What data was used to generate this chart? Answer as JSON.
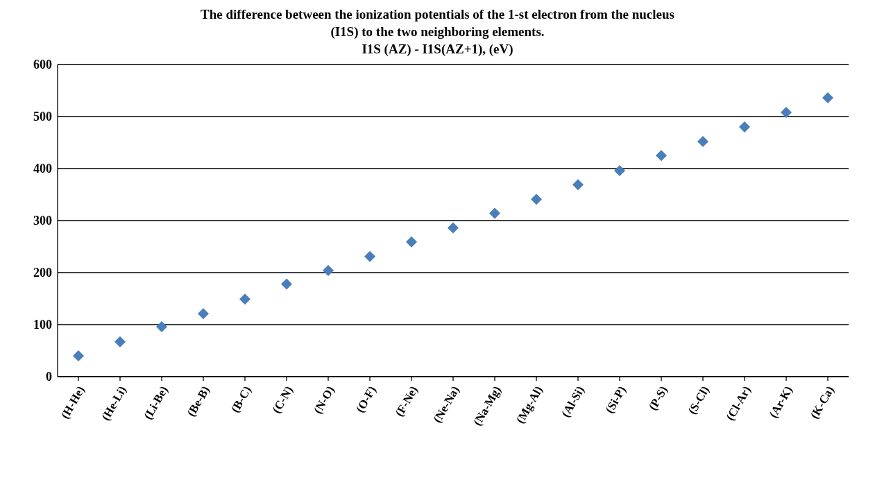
{
  "chart_data": {
    "type": "scatter",
    "title": "The difference between the ionization potentials of the 1-st electron from the nucleus\n(I1S) to the two neighboring elements.\nI1S (AZ) - I1S(AZ+1), (eV)",
    "categories": [
      "(H-He)",
      "(He-Li)",
      "(Li-Be)",
      "(Be-B)",
      "(B-C)",
      "(C-N)",
      "(N-O)",
      "(O-F)",
      "(F-Ne)",
      "(Ne-Na)",
      "(Na-Mg)",
      "(Mg-Al)",
      "(Al-Si)",
      "(Si-P)",
      "(P-S)",
      "(S-Cl)",
      "(Cl-Ar)",
      "(Ar-K)",
      "(K-Ca)"
    ],
    "values": [
      40,
      67,
      96,
      121,
      149,
      178,
      204,
      231,
      259,
      286,
      314,
      341,
      369,
      396,
      425,
      452,
      480,
      508,
      536
    ],
    "color": "#4a7ebb",
    "marker": "diamond",
    "ylim": [
      0,
      600
    ],
    "yticks": [
      0,
      100,
      200,
      300,
      400,
      500,
      600
    ],
    "grid": "y",
    "legend": false
  }
}
